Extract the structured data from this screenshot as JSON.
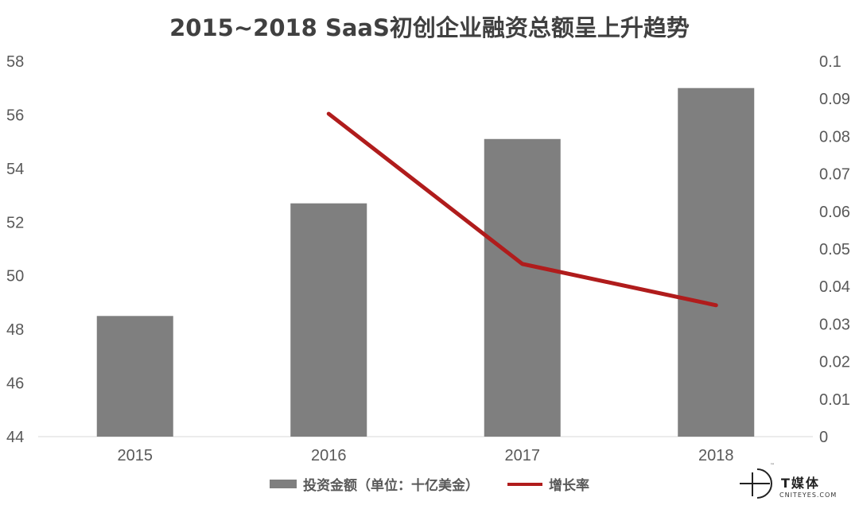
{
  "chart_data": {
    "type": "bar",
    "title": "2015~2018 SaaS初创企业融资总额呈上升趋势",
    "categories": [
      "2015",
      "2016",
      "2017",
      "2018"
    ],
    "series": [
      {
        "name": "投资金额（单位：十亿美金）",
        "type": "bar",
        "axis": "left",
        "color": "#7f7f7f",
        "values": [
          48.5,
          52.7,
          55.1,
          57.0
        ]
      },
      {
        "name": "增长率",
        "type": "line",
        "axis": "right",
        "color": "#b01c1c",
        "values": [
          null,
          0.086,
          0.046,
          0.035
        ]
      }
    ],
    "y_left": {
      "ylim": [
        44,
        58
      ],
      "ticks": [
        "44",
        "46",
        "48",
        "50",
        "52",
        "54",
        "56",
        "58"
      ]
    },
    "y_right": {
      "ylim": [
        0,
        0.1
      ],
      "ticks": [
        "0",
        "0.01",
        "0.02",
        "0.03",
        "0.04",
        "0.05",
        "0.06",
        "0.07",
        "0.08",
        "0.09",
        "0.1"
      ]
    },
    "grid": false,
    "legend_position": "bottom"
  },
  "watermark": {
    "brand": "T媒体",
    "domain": "CNITEYES.COM",
    "tm": "™"
  }
}
